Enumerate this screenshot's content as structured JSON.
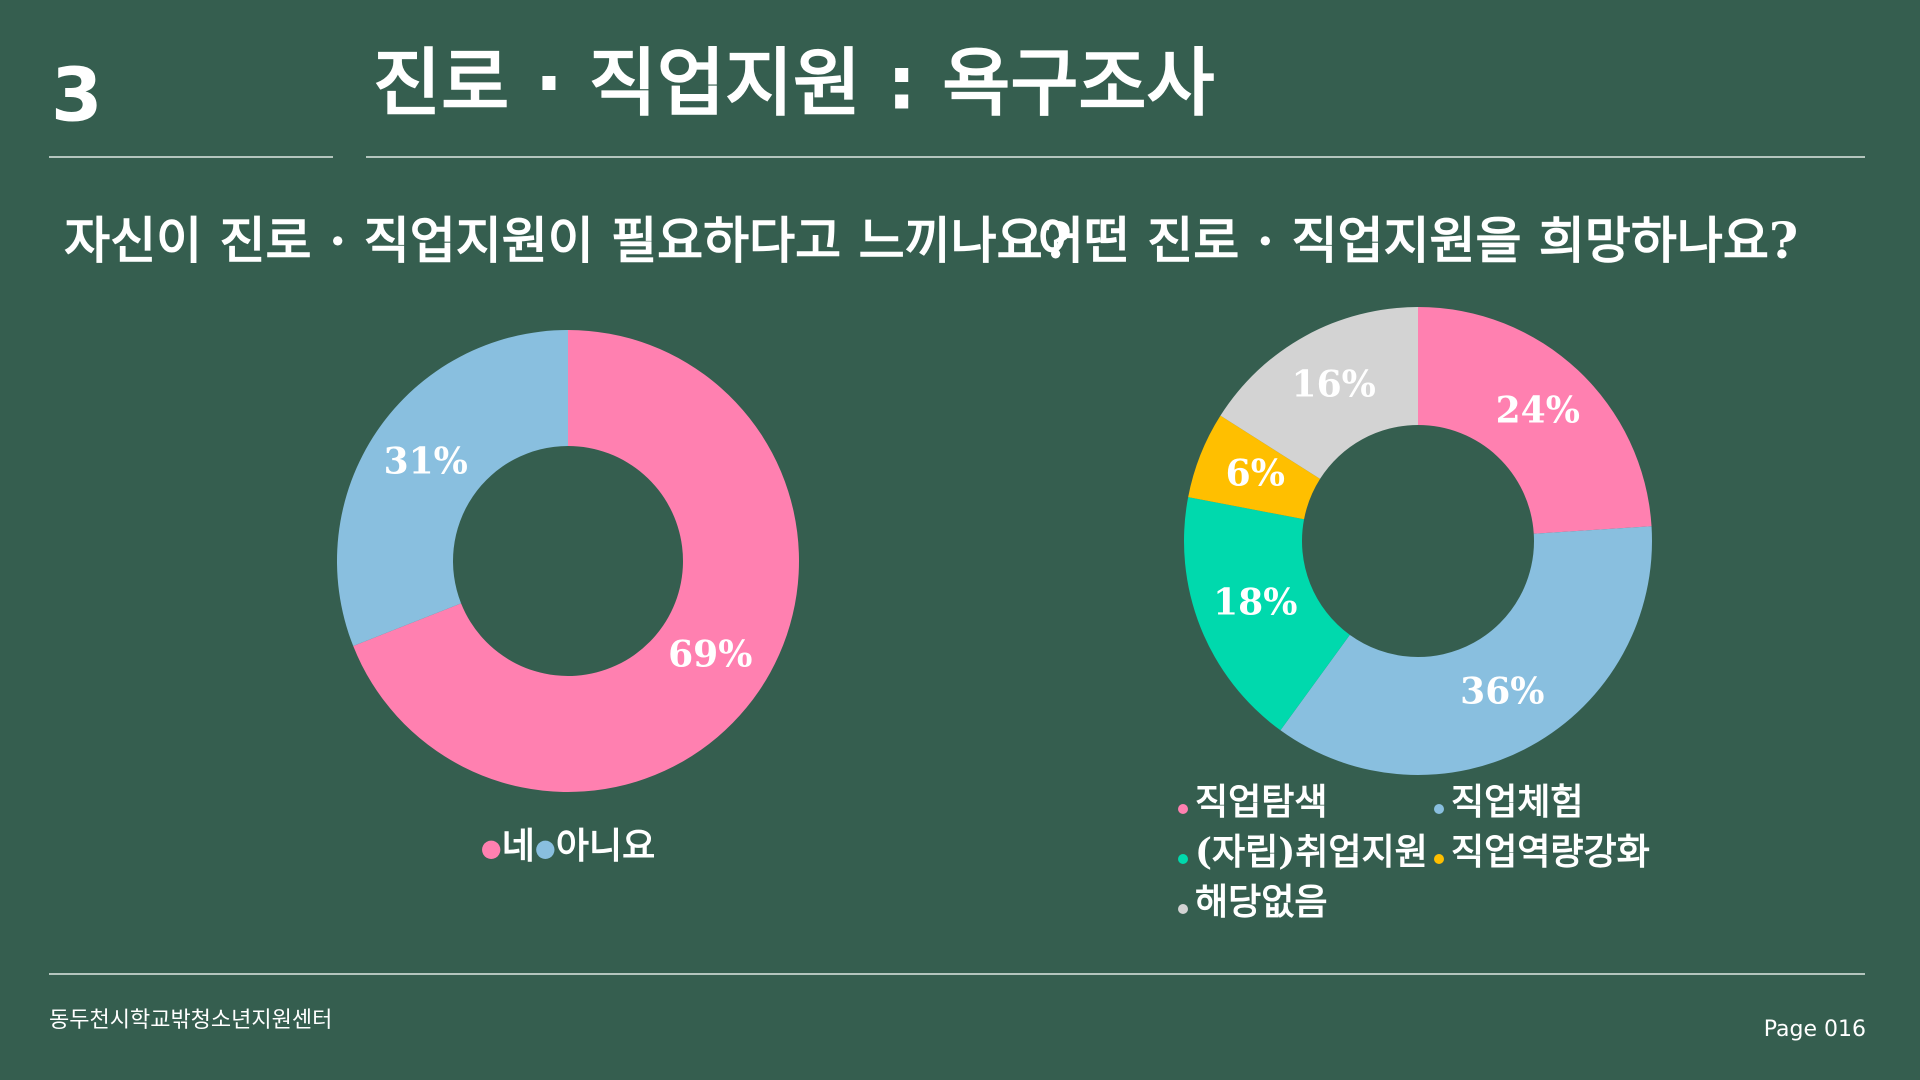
{
  "header": {
    "number": "3",
    "title": "진로 · 직업지원 : 욕구조사"
  },
  "footer": {
    "organization": "동두천시학교밖청소년지원센터",
    "page": "Page 016"
  },
  "chart_data": [
    {
      "type": "pie",
      "title": "자신이 진로 · 직업지원이 필요하다고 느끼나요?",
      "categories": [
        "네",
        "아니요"
      ],
      "values": [
        69,
        31
      ],
      "value_labels": [
        "69%",
        "31%"
      ],
      "colors": [
        "#ff80b0",
        "#89bfdf"
      ],
      "legend": "bottom"
    },
    {
      "type": "pie",
      "title": "어떤 진로 · 직업지원을 희망하나요?",
      "categories": [
        "직업탐색",
        "직업체험",
        "(자립)취업지원",
        "직업역량강화",
        "해당없음"
      ],
      "values": [
        24,
        36,
        18,
        6,
        16
      ],
      "value_labels": [
        "24%",
        "36%",
        "18%",
        "6%",
        "16%"
      ],
      "colors": [
        "#ff80b0",
        "#89bfdf",
        "#00d9ad",
        "#ffbf00",
        "#d3d3d3"
      ],
      "legend": "bottom"
    }
  ]
}
